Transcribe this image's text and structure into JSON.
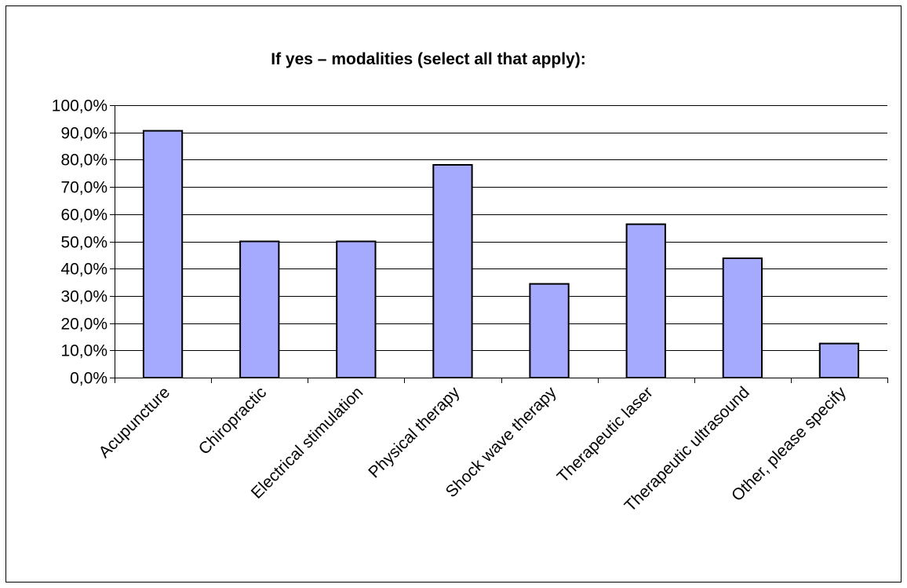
{
  "chart_data": {
    "type": "bar",
    "title": "If yes – modalities (select all that apply):",
    "xlabel": "",
    "ylabel": "",
    "categories": [
      "Acupuncture",
      "Chiropractic",
      "Electrical stimulation",
      "Physical therapy",
      "Shock wave therapy",
      "Therapeutic laser",
      "Therapeutic ultrasound",
      "Other, please specify"
    ],
    "values": [
      90.6,
      50.0,
      50.0,
      78.1,
      34.4,
      56.3,
      43.8,
      12.5
    ],
    "ylim": [
      0,
      100
    ],
    "yticks": [
      0,
      10,
      20,
      30,
      40,
      50,
      60,
      70,
      80,
      90,
      100
    ],
    "ytick_labels": [
      "0,0%",
      "10,0%",
      "20,0%",
      "30,0%",
      "40,0%",
      "50,0%",
      "60,0%",
      "70,0%",
      "80,0%",
      "90,0%",
      "100,0%"
    ],
    "grid": true,
    "legend": "none",
    "colors": {
      "bar_fill": "#a6aaff",
      "bar_stroke": "#000000",
      "gridline": "#000000",
      "axis": "#000000",
      "frame": "#000000"
    }
  }
}
